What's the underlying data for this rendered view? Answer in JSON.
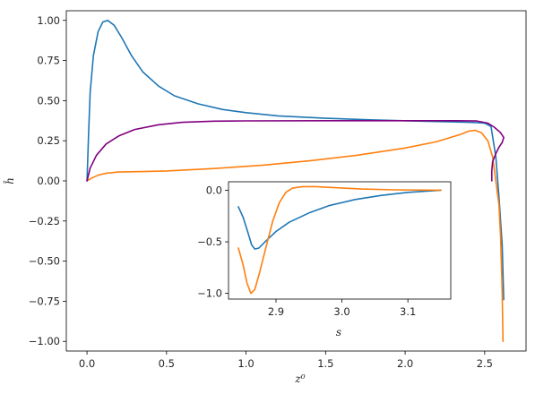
{
  "chart_data": [
    {
      "type": "line",
      "title": "",
      "xlabel": "z⁰",
      "ylabel": "ĥ",
      "xlim": [
        -0.13,
        2.76
      ],
      "ylim": [
        -1.06,
        1.06
      ],
      "x_ticks": [
        {
          "value": 0.0,
          "label": "0.0"
        },
        {
          "value": 0.5,
          "label": "0.5"
        },
        {
          "value": 1.0,
          "label": "1.0"
        },
        {
          "value": 1.5,
          "label": "1.5"
        },
        {
          "value": 2.0,
          "label": "2.0"
        },
        {
          "value": 2.5,
          "label": "2.5"
        }
      ],
      "y_ticks": [
        {
          "value": 1.0,
          "label": "1.00"
        },
        {
          "value": 0.75,
          "label": "0.75"
        },
        {
          "value": 0.5,
          "label": "0.50"
        },
        {
          "value": 0.25,
          "label": "0.25"
        },
        {
          "value": 0.0,
          "label": "0.00"
        },
        {
          "value": -0.25,
          "label": "−0.25"
        },
        {
          "value": -0.5,
          "label": "−0.50"
        },
        {
          "value": -0.75,
          "label": "−0.75"
        },
        {
          "value": -1.0,
          "label": "−1.00"
        }
      ],
      "grid": false,
      "series": [
        {
          "color": "#1f77b4",
          "points": [
            [
              0.0,
              0.0
            ],
            [
              0.01,
              0.3
            ],
            [
              0.02,
              0.55
            ],
            [
              0.04,
              0.78
            ],
            [
              0.07,
              0.93
            ],
            [
              0.1,
              0.99
            ],
            [
              0.13,
              1.0
            ],
            [
              0.17,
              0.97
            ],
            [
              0.22,
              0.89
            ],
            [
              0.28,
              0.78
            ],
            [
              0.35,
              0.68
            ],
            [
              0.45,
              0.59
            ],
            [
              0.55,
              0.53
            ],
            [
              0.7,
              0.48
            ],
            [
              0.85,
              0.445
            ],
            [
              1.0,
              0.425
            ],
            [
              1.2,
              0.405
            ],
            [
              1.5,
              0.39
            ],
            [
              1.8,
              0.38
            ],
            [
              2.1,
              0.372
            ],
            [
              2.4,
              0.365
            ],
            [
              2.5,
              0.36
            ],
            [
              2.54,
              0.34
            ],
            [
              2.57,
              0.15
            ],
            [
              2.59,
              -0.1
            ],
            [
              2.61,
              -0.4
            ],
            [
              2.62,
              -0.74
            ]
          ]
        },
        {
          "color": "#ff7f0e",
          "points": [
            [
              0.0,
              0.0
            ],
            [
              0.03,
              0.018
            ],
            [
              0.07,
              0.035
            ],
            [
              0.12,
              0.048
            ],
            [
              0.2,
              0.055
            ],
            [
              0.35,
              0.058
            ],
            [
              0.5,
              0.062
            ],
            [
              0.8,
              0.077
            ],
            [
              1.1,
              0.097
            ],
            [
              1.4,
              0.125
            ],
            [
              1.7,
              0.16
            ],
            [
              2.0,
              0.205
            ],
            [
              2.2,
              0.245
            ],
            [
              2.35,
              0.29
            ],
            [
              2.4,
              0.31
            ],
            [
              2.44,
              0.315
            ],
            [
              2.48,
              0.3
            ],
            [
              2.52,
              0.25
            ],
            [
              2.55,
              0.15
            ],
            [
              2.57,
              0.0
            ],
            [
              2.59,
              -0.15
            ],
            [
              2.6,
              -0.35
            ],
            [
              2.61,
              -0.7
            ],
            [
              2.615,
              -1.0
            ]
          ]
        },
        {
          "color": "#800080",
          "points": [
            [
              0.0,
              0.0
            ],
            [
              0.02,
              0.08
            ],
            [
              0.06,
              0.16
            ],
            [
              0.12,
              0.23
            ],
            [
              0.2,
              0.28
            ],
            [
              0.3,
              0.32
            ],
            [
              0.45,
              0.35
            ],
            [
              0.6,
              0.365
            ],
            [
              0.8,
              0.372
            ],
            [
              1.0,
              0.374
            ],
            [
              1.5,
              0.375
            ],
            [
              2.0,
              0.375
            ],
            [
              2.3,
              0.375
            ],
            [
              2.45,
              0.373
            ],
            [
              2.52,
              0.36
            ],
            [
              2.56,
              0.335
            ],
            [
              2.6,
              0.3
            ],
            [
              2.62,
              0.27
            ],
            [
              2.61,
              0.24
            ],
            [
              2.59,
              0.21
            ],
            [
              2.57,
              0.17
            ],
            [
              2.55,
              0.12
            ],
            [
              2.545,
              0.06
            ],
            [
              2.545,
              0.0
            ]
          ]
        }
      ]
    },
    {
      "type": "line",
      "title": "",
      "xlabel": "s",
      "ylabel": "",
      "xlim": [
        2.828,
        3.165
      ],
      "ylim": [
        -1.055,
        0.082
      ],
      "x_ticks": [
        {
          "value": 2.9,
          "label": "2.9"
        },
        {
          "value": 3.0,
          "label": "3.0"
        },
        {
          "value": 3.1,
          "label": "3.1"
        }
      ],
      "y_ticks": [
        {
          "value": 0.0,
          "label": "0.0"
        },
        {
          "value": -0.5,
          "label": "−0.5"
        },
        {
          "value": -1.0,
          "label": "−1.0"
        }
      ],
      "grid": false,
      "series": [
        {
          "color": "#1f77b4",
          "points": [
            [
              2.843,
              -0.16
            ],
            [
              2.85,
              -0.26
            ],
            [
              2.857,
              -0.4
            ],
            [
              2.863,
              -0.53
            ],
            [
              2.868,
              -0.57
            ],
            [
              2.874,
              -0.56
            ],
            [
              2.885,
              -0.49
            ],
            [
              2.9,
              -0.4
            ],
            [
              2.92,
              -0.31
            ],
            [
              2.95,
              -0.22
            ],
            [
              2.98,
              -0.15
            ],
            [
              3.02,
              -0.09
            ],
            [
              3.06,
              -0.05
            ],
            [
              3.1,
              -0.02
            ],
            [
              3.15,
              0.0
            ]
          ]
        },
        {
          "color": "#ff7f0e",
          "points": [
            [
              2.843,
              -0.56
            ],
            [
              2.85,
              -0.72
            ],
            [
              2.856,
              -0.9
            ],
            [
              2.862,
              -1.0
            ],
            [
              2.868,
              -0.96
            ],
            [
              2.875,
              -0.8
            ],
            [
              2.885,
              -0.55
            ],
            [
              2.895,
              -0.3
            ],
            [
              2.905,
              -0.12
            ],
            [
              2.915,
              -0.02
            ],
            [
              2.925,
              0.02
            ],
            [
              2.94,
              0.035
            ],
            [
              2.96,
              0.035
            ],
            [
              2.99,
              0.025
            ],
            [
              3.03,
              0.012
            ],
            [
              3.08,
              0.004
            ],
            [
              3.15,
              0.0
            ]
          ]
        }
      ]
    }
  ]
}
